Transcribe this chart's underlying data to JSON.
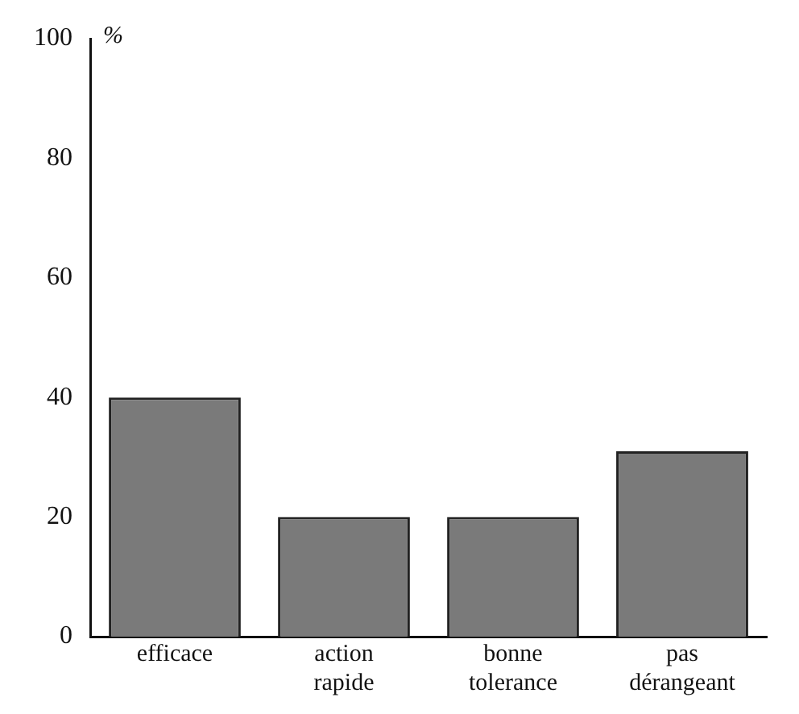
{
  "chart_data": {
    "type": "bar",
    "ylabel": "%",
    "categories": [
      "efficace",
      "action rapide",
      "bonne tolerance",
      "pas dérangeant"
    ],
    "values": [
      40,
      20,
      20,
      31
    ],
    "color": "#7a7a7a",
    "ylim": [
      0,
      100
    ],
    "yticks": [
      0,
      20,
      40,
      60,
      80,
      100
    ],
    "grid": false,
    "legend": false
  }
}
